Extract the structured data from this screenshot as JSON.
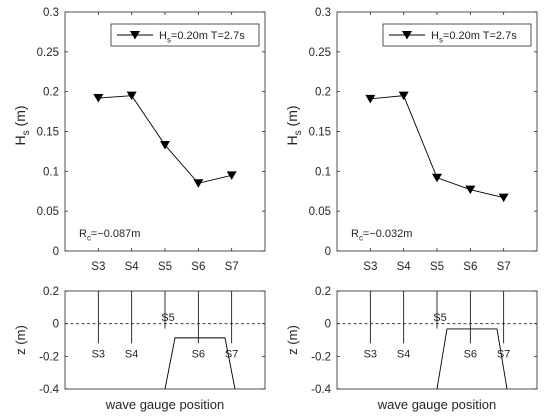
{
  "chart_data": [
    {
      "type": "line",
      "series": [
        {
          "name": "H_s=0.20m T=2.7s",
          "categories": [
            "S3",
            "S4",
            "S5",
            "S6",
            "S7"
          ],
          "values": [
            0.192,
            0.195,
            0.133,
            0.085,
            0.095
          ]
        }
      ],
      "legend": {
        "main": "H",
        "sub": "s",
        "rest": "=0.20m T=2.7s"
      },
      "ylabel": {
        "main": "H",
        "sub": "s",
        "rest": " (m)"
      },
      "yticks": [
        "0",
        "0.05",
        "0.1",
        "0.15",
        "0.2",
        "0.25",
        "0.3"
      ],
      "ylim": [
        0,
        0.3
      ],
      "annotation": {
        "main": "R",
        "sub": "c",
        "rest": "=−0.087m"
      },
      "legend_position": "top-right",
      "marker": "triangle-down",
      "line_color": "#000000"
    },
    {
      "type": "line",
      "series": [
        {
          "name": "H_s=0.20m T=2.7s",
          "categories": [
            "S3",
            "S4",
            "S5",
            "S6",
            "S7"
          ],
          "values": [
            0.191,
            0.195,
            0.092,
            0.077,
            0.067
          ]
        }
      ],
      "legend": {
        "main": "H",
        "sub": "s",
        "rest": "=0.20m T=2.7s"
      },
      "ylabel": {
        "main": "H",
        "sub": "s",
        "rest": " (m)"
      },
      "yticks": [
        "0",
        "0.05",
        "0.1",
        "0.15",
        "0.2",
        "0.25",
        "0.3"
      ],
      "ylim": [
        0,
        0.3
      ],
      "annotation": {
        "main": "R",
        "sub": "c",
        "rest": "=−0.032m"
      },
      "legend_position": "top-right",
      "marker": "triangle-down",
      "line_color": "#000000"
    },
    {
      "type": "diagram",
      "xlabel": "wave gauge position",
      "ylabel": "z (m)",
      "yticks": [
        "-0.4",
        "-0.2",
        "0",
        "0.2"
      ],
      "ylim": [
        -0.4,
        0.2
      ],
      "gauges": [
        {
          "label": "S3",
          "bottom": -0.12
        },
        {
          "label": "S4",
          "bottom": -0.12
        },
        {
          "label": "S5",
          "bottom": -0.03
        },
        {
          "label": "S6",
          "bottom": -0.12
        },
        {
          "label": "S7",
          "bottom": -0.12
        }
      ],
      "water_level": 0,
      "structure": {
        "crest": -0.087,
        "base": -0.4,
        "crest_span": [
          3.3,
          4.8
        ],
        "base_span": [
          3.0,
          5.1
        ]
      }
    },
    {
      "type": "diagram",
      "xlabel": "wave gauge position",
      "ylabel": "z (m)",
      "yticks": [
        "-0.4",
        "-0.2",
        "0",
        "0.2"
      ],
      "ylim": [
        -0.4,
        0.2
      ],
      "gauges": [
        {
          "label": "S3",
          "bottom": -0.12
        },
        {
          "label": "S4",
          "bottom": -0.12
        },
        {
          "label": "S5",
          "bottom": -0.03
        },
        {
          "label": "S6",
          "bottom": -0.12
        },
        {
          "label": "S7",
          "bottom": -0.12
        }
      ],
      "water_level": 0,
      "structure": {
        "crest": -0.032,
        "base": -0.4,
        "crest_span": [
          3.3,
          4.8
        ],
        "base_span": [
          3.0,
          5.1
        ]
      }
    }
  ]
}
